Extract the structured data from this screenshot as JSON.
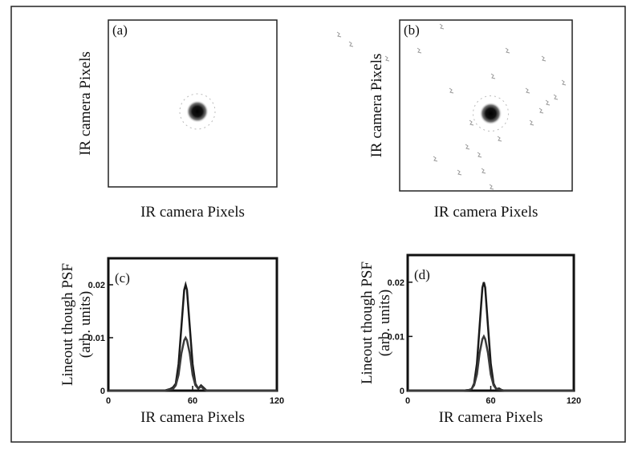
{
  "chart_data": [
    {
      "type": "image",
      "panel_label": "(a)",
      "xlabel": "IR camera Pixels",
      "ylabel": "IR camera Pixels",
      "speckles": false
    },
    {
      "type": "image",
      "panel_label": "(b)",
      "xlabel": "IR camera Pixels",
      "ylabel": "IR camera Pixels",
      "speckles": true
    },
    {
      "type": "line",
      "panel_label": "(c)",
      "xlabel": "IR camera Pixels",
      "ylabel": [
        "Lineout though PSF",
        "(arb. units)"
      ],
      "x": [
        0,
        40,
        44,
        46,
        48,
        50,
        52,
        54,
        55,
        56,
        58,
        60,
        62,
        64,
        66,
        68,
        70,
        120
      ],
      "series": [
        {
          "color": "#1a1a1a",
          "values": [
            0,
            0,
            0.0003,
            0.0006,
            0.0013,
            0.005,
            0.012,
            0.019,
            0.02,
            0.019,
            0.012,
            0.005,
            0.0013,
            0.0004,
            0.001,
            0.0005,
            0,
            0
          ]
        },
        {
          "color": "#3a3a3a",
          "values": [
            0,
            0,
            0.0002,
            0.0003,
            0.001,
            0.003,
            0.007,
            0.0095,
            0.01,
            0.0095,
            0.007,
            0.003,
            0.001,
            0.0004,
            0.0008,
            0.0003,
            0,
            0
          ]
        }
      ],
      "xlim": [
        0,
        120
      ],
      "ylim": [
        0,
        0.025
      ],
      "xticks": [
        0,
        60,
        120
      ],
      "yticks": [
        0,
        0.01,
        0.02
      ]
    },
    {
      "type": "line",
      "panel_label": "(d)",
      "xlabel": "IR camera Pixels",
      "ylabel": [
        "Lineout though PSF",
        "(arb. units)"
      ],
      "x": [
        0,
        40,
        44,
        46,
        48,
        50,
        52,
        54,
        55,
        56,
        58,
        60,
        62,
        64,
        66,
        68,
        70,
        120
      ],
      "series": [
        {
          "color": "#1a1a1a",
          "values": [
            0,
            0,
            0.0001,
            0.0002,
            0.0013,
            0.005,
            0.012,
            0.019,
            0.02,
            0.019,
            0.012,
            0.005,
            0.0013,
            0.0003,
            0.0004,
            0.0001,
            0,
            0
          ]
        },
        {
          "color": "#3a3a3a",
          "values": [
            0,
            0,
            0.0001,
            0.0003,
            0.001,
            0.003,
            0.007,
            0.0095,
            0.01,
            0.0095,
            0.007,
            0.003,
            0.001,
            0.0003,
            0.0002,
            0.0001,
            0,
            0
          ]
        }
      ],
      "xlim": [
        0,
        120
      ],
      "ylim": [
        0,
        0.025
      ],
      "xticks": [
        0,
        60,
        120
      ],
      "yticks": [
        0,
        0.01,
        0.02
      ]
    }
  ]
}
